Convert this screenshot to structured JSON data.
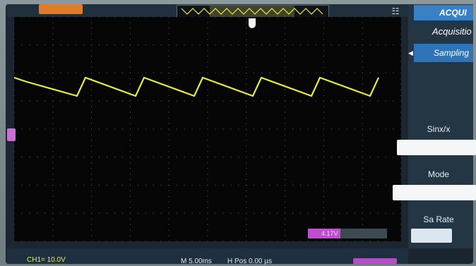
{
  "status": {
    "ch1_scale": "CH1= 10.0V",
    "timebase": "M 5.00ms",
    "h_position": "H Pos 0.00 µs"
  },
  "trigger": {
    "level_text": "4.17V"
  },
  "menu": {
    "header": "ACQUI",
    "title": "Acquisitio",
    "sampling": "Sampling",
    "sinx_label": "Sinx/x",
    "mode_label": "Mode",
    "sarate_label": "Sa Rate"
  },
  "icons": {
    "usb": "usb-icon",
    "submenu_arrow": "left-triangle-icon"
  },
  "colors": {
    "trace": "#e8ec3c",
    "ch1_marker": "#c870d8",
    "menu_active": "#2e74b8"
  }
}
